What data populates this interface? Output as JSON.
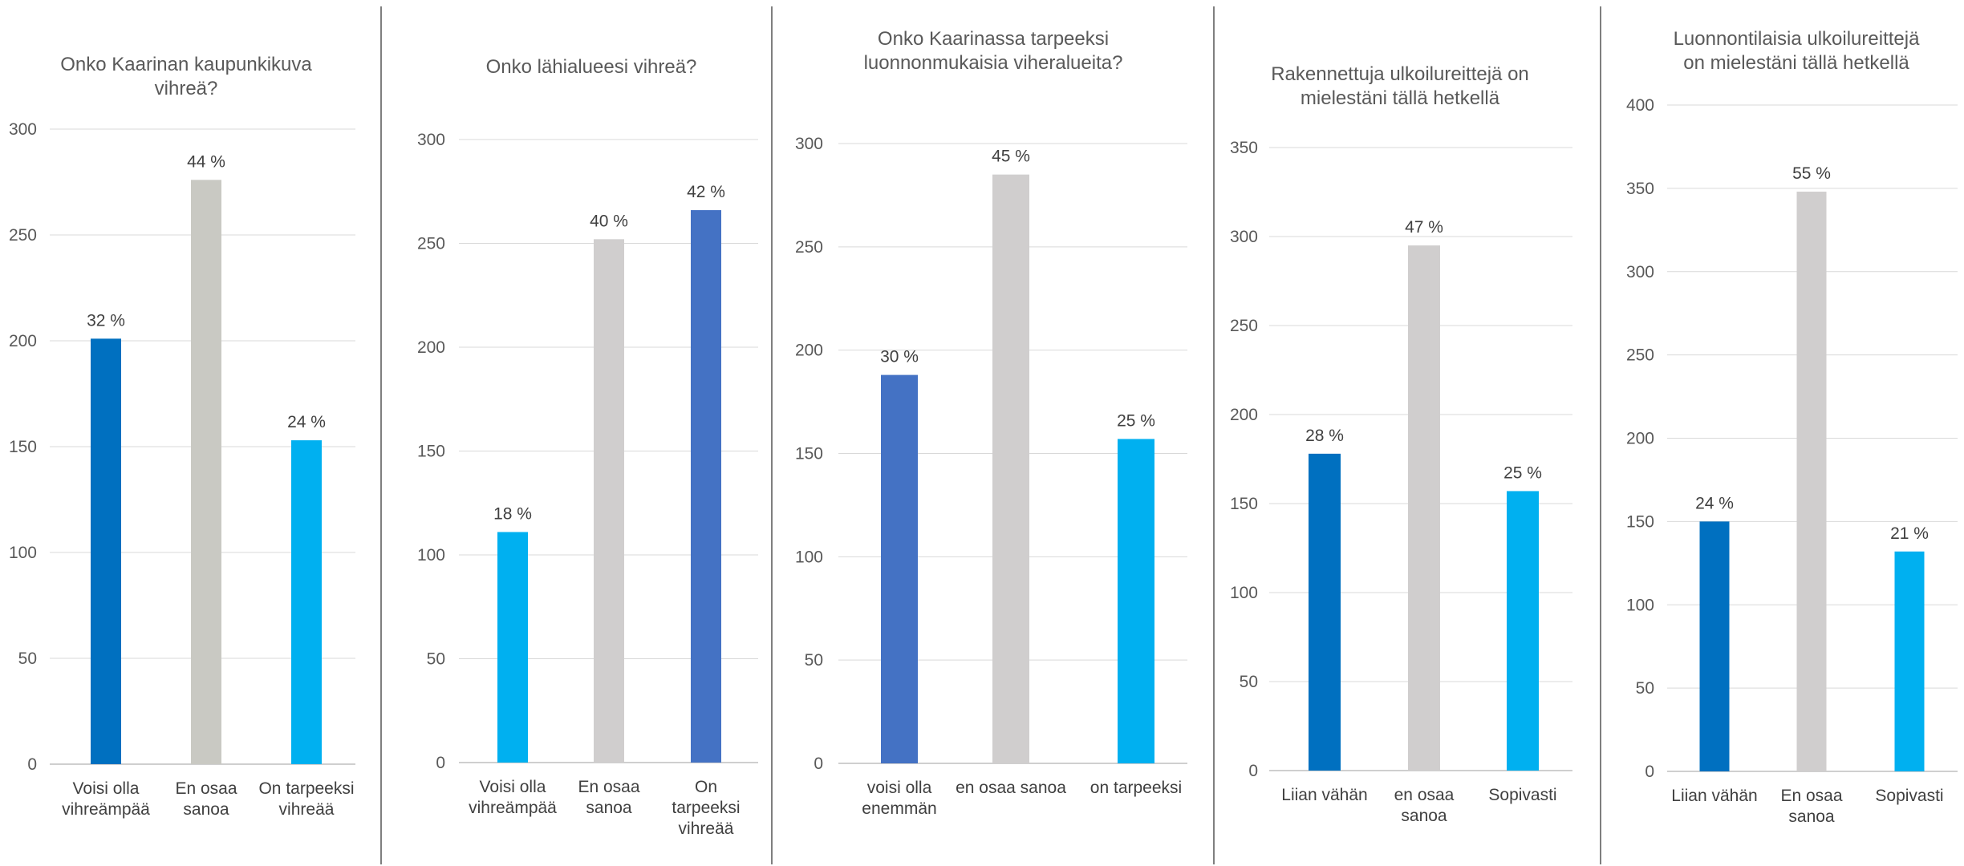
{
  "chart_data": [
    {
      "type": "bar",
      "title": [
        "Onko Kaarinan kaupunkikuva",
        "vihreä?"
      ],
      "categories": [
        [
          "Voisi olla",
          "vihreämpää"
        ],
        [
          "En osaa",
          "sanoa"
        ],
        [
          "On tarpeeksi",
          "vihreää"
        ]
      ],
      "values": [
        201,
        276,
        153
      ],
      "data_labels": [
        "32 %",
        "44 %",
        "24 %"
      ],
      "colors": [
        "#0070C0",
        "#C9C9C3",
        "#00B0F0"
      ],
      "yticks": [
        0,
        50,
        100,
        150,
        200,
        250,
        300
      ],
      "ylim": [
        0,
        300
      ],
      "grid": true
    },
    {
      "type": "bar",
      "title": [
        "Onko lähialueesi vihreä?"
      ],
      "categories": [
        [
          "Voisi olla",
          "vihreämpää"
        ],
        [
          "En osaa",
          "sanoa"
        ],
        [
          "On",
          "tarpeeksi",
          "vihreää"
        ]
      ],
      "values": [
        111,
        252,
        266
      ],
      "data_labels": [
        "18 %",
        "40 %",
        "42 %"
      ],
      "colors": [
        "#00B0F0",
        "#D0CECE",
        "#4472C4"
      ],
      "yticks": [
        0,
        50,
        100,
        150,
        200,
        250,
        300
      ],
      "ylim": [
        0,
        300
      ],
      "grid": true
    },
    {
      "type": "bar",
      "title": [
        "Onko Kaarinassa tarpeeksi",
        "luonnonmukaisia viheralueita?"
      ],
      "categories": [
        [
          "voisi olla",
          "enemmän"
        ],
        [
          "en osaa sanoa"
        ],
        [
          "on tarpeeksi"
        ]
      ],
      "values": [
        188,
        285,
        157
      ],
      "data_labels": [
        "30 %",
        "45 %",
        "25 %"
      ],
      "colors": [
        "#4472C4",
        "#D0CECE",
        "#00B0F0"
      ],
      "yticks": [
        0,
        50,
        100,
        150,
        200,
        250,
        300
      ],
      "ylim": [
        0,
        300
      ],
      "grid": true
    },
    {
      "type": "bar",
      "title": [
        "Rakennettuja ulkoilureittejä on",
        "mielestäni tällä hetkellä"
      ],
      "categories": [
        [
          "Liian vähän"
        ],
        [
          "en osaa",
          "sanoa"
        ],
        [
          "Sopivasti"
        ]
      ],
      "values": [
        178,
        295,
        157
      ],
      "data_labels": [
        "28 %",
        "47 %",
        "25 %"
      ],
      "colors": [
        "#0070C0",
        "#D0CECE",
        "#00B0F0"
      ],
      "yticks": [
        0,
        50,
        100,
        150,
        200,
        250,
        300,
        350
      ],
      "ylim": [
        0,
        350
      ],
      "grid": true
    },
    {
      "type": "bar",
      "title": [
        "Luonnontilaisia ulkoilureittejä",
        "on mielestäni tällä hetkellä"
      ],
      "categories": [
        [
          "Liian vähän"
        ],
        [
          "En osaa",
          "sanoa"
        ],
        [
          "Sopivasti"
        ]
      ],
      "values": [
        150,
        348,
        132
      ],
      "data_labels": [
        "24 %",
        "55 %",
        "21 %"
      ],
      "colors": [
        "#0070C0",
        "#D0CECE",
        "#00B0F0"
      ],
      "yticks": [
        0,
        50,
        100,
        150,
        200,
        250,
        300,
        350,
        400
      ],
      "ylim": [
        0,
        400
      ],
      "grid": true
    }
  ]
}
